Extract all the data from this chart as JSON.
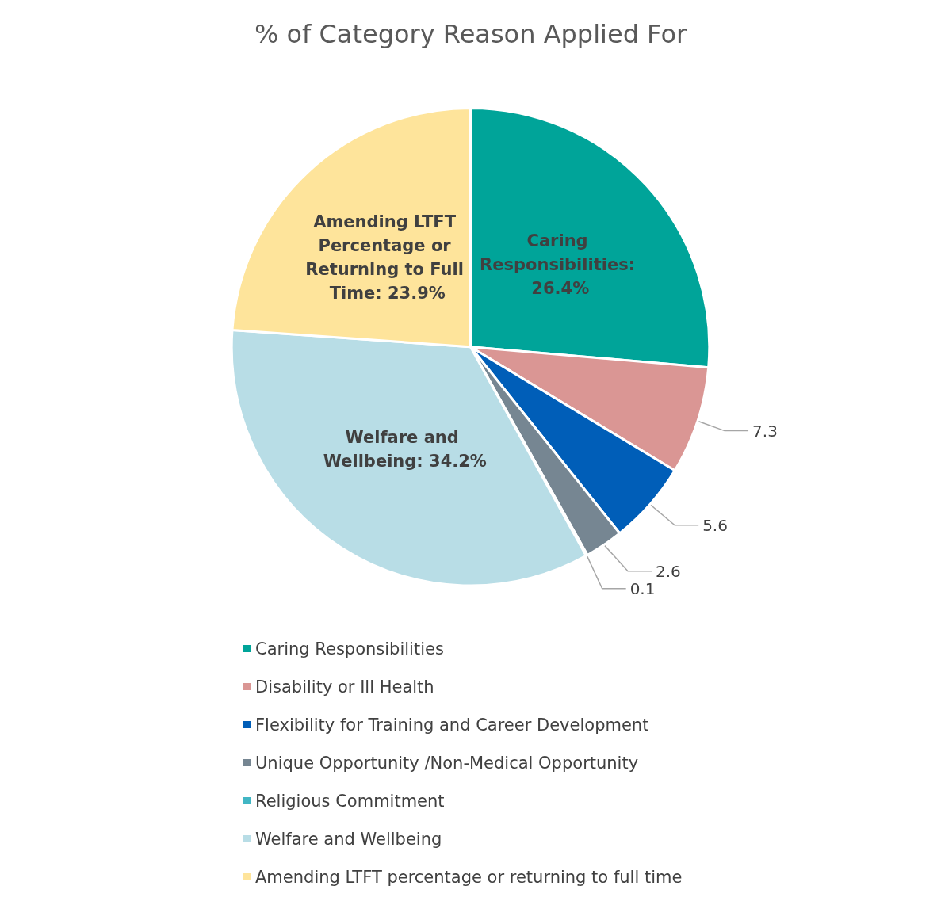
{
  "chart_data": {
    "type": "pie",
    "title": "% of Category Reason Applied For",
    "categories": [
      "Caring Responsibilities",
      "Disability or Ill Health",
      "Flexibility for Training and Career Development",
      "Unique Opportunity /Non-Medical Opportunity",
      "Religious Commitment",
      "Welfare and Wellbeing",
      "Amending LTFT percentage or returning to full time"
    ],
    "values": [
      26.4,
      7.3,
      5.6,
      2.6,
      0.1,
      34.2,
      23.9
    ],
    "colors": [
      "#00a499",
      "#da9694",
      "#005eb8",
      "#768692",
      "#41b6c4",
      "#b8dde6",
      "#fee49b"
    ],
    "value_labels": [
      "Caring Responsibilities: 26.4%",
      "7.3",
      "5.6",
      "2.6",
      "0.1",
      "Welfare and Wellbeing: 34.2%",
      "Amending LTFT Percentage or Returning to Full Time: 23.9%"
    ],
    "legend": "bottom"
  }
}
